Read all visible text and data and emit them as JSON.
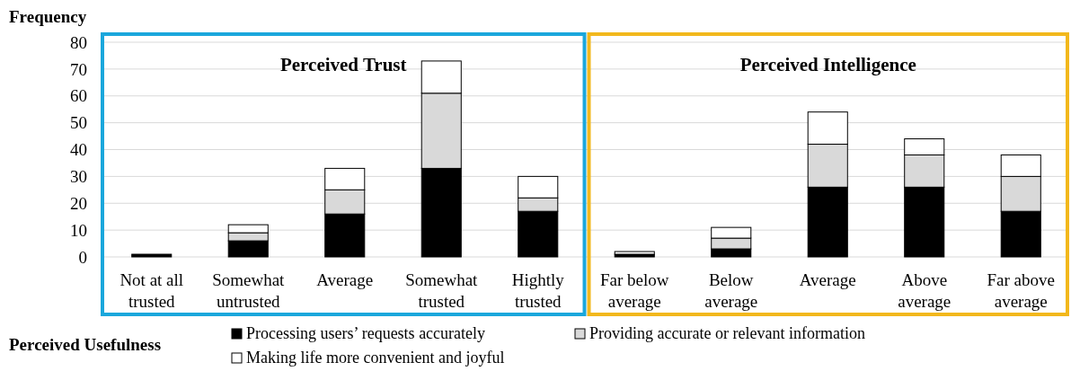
{
  "chart_data": {
    "type": "bar",
    "stacked": true,
    "ylabel": "Frequency",
    "legend_title": "Perceived Usefulness",
    "legend": "bottom",
    "grid": "y",
    "categories": [
      "Not at all trusted",
      "Somewhat untrusted",
      "Average",
      "Somewhat trusted",
      "Hightly trusted",
      "Far below average",
      "Below average",
      "Average",
      "Above average",
      "Far above average"
    ],
    "series": [
      {
        "name": "Processing users’ requests accurately",
        "color": "#000000",
        "values": [
          1,
          6,
          16,
          33,
          17,
          1,
          3,
          26,
          26,
          17
        ]
      },
      {
        "name": "Providing accurate or relevant information",
        "color": "#d9d9d9",
        "values": [
          0,
          3,
          9,
          28,
          5,
          0,
          4,
          16,
          12,
          13
        ]
      },
      {
        "name": "Making life more convenient and joyful",
        "color": "#ffffff",
        "values": [
          0,
          3,
          8,
          12,
          8,
          1,
          4,
          12,
          6,
          8
        ]
      }
    ],
    "ylim": [
      0,
      80
    ],
    "yticks": [
      0,
      10,
      20,
      30,
      40,
      50,
      60,
      70,
      80
    ],
    "annotations": [
      "Perceived Trust",
      "Perceived Intelligence"
    ]
  }
}
